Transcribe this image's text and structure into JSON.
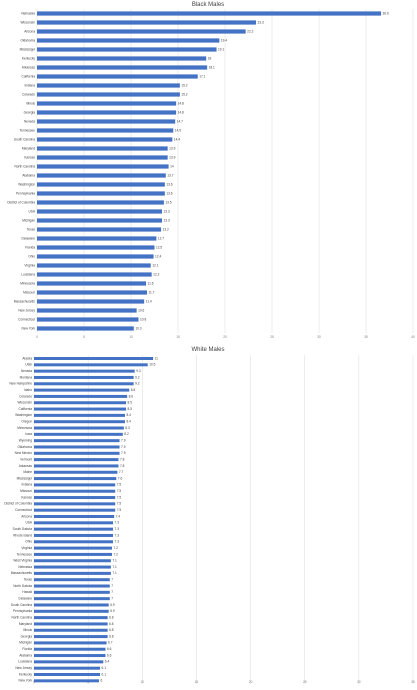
{
  "chart_data": [
    {
      "type": "bar",
      "orientation": "horizontal",
      "title": "Black Males",
      "categories": [
        "Nebraska",
        "Wisconsin",
        "Arizona",
        "Oklahoma",
        "Mississippi",
        "Kentucky",
        "Arkansas",
        "California",
        "Indiana",
        "Colorado",
        "Illinois",
        "Georgia",
        "Nevada",
        "Tennessee",
        "South Carolina",
        "Maryland",
        "Kansas",
        "North Carolina",
        "Alabama",
        "Washington",
        "Pennsylvania",
        "District of Columbia",
        "USA",
        "Michigan",
        "Texas",
        "Delaware",
        "Florida",
        "Ohio",
        "Virginia",
        "Louisiana",
        "Minnesota",
        "Missouri",
        "Massachusetts",
        "New Jersey",
        "Connecticut",
        "New York"
      ],
      "values": [
        36.6,
        23.3,
        22.2,
        19.4,
        19.1,
        18,
        18.1,
        17.1,
        15.2,
        15.2,
        14.8,
        14.8,
        14.7,
        14.5,
        14.4,
        13.9,
        13.9,
        14,
        13.7,
        13.6,
        13.6,
        13.5,
        13.3,
        13.3,
        13.2,
        12.7,
        12.5,
        12.4,
        12.1,
        12.2,
        11.6,
        11.7,
        11.4,
        10.6,
        10.8,
        10.3
      ],
      "xlim": [
        0,
        40
      ],
      "ticks": [
        "0",
        "5",
        "10",
        "15",
        "20",
        "25",
        "30",
        "35",
        "40"
      ],
      "grid": true,
      "legend": "none"
    },
    {
      "type": "bar",
      "orientation": "horizontal",
      "title": "White Males",
      "categories": [
        "Alaska",
        "Utah",
        "Nevada",
        "Montana",
        "New Hampshire",
        "Idaho",
        "Colorado",
        "Wisconsin",
        "California",
        "Washington",
        "Oregon",
        "Minnesota",
        "Iowa",
        "Wyoming",
        "Oklahoma",
        "New Mexico",
        "Vermont",
        "Arkansas",
        "Maine",
        "Mississippi",
        "Indiana",
        "Missouri",
        "Kansas",
        "District of Columbia",
        "Connecticut",
        "Arizona",
        "USA",
        "South Dakota",
        "Rhode Island",
        "Ohio",
        "Virginia",
        "Tennessee",
        "West Virginia",
        "Nebraska",
        "Massachusetts",
        "Texas",
        "North Dakota",
        "Hawaii",
        "Delaware",
        "South Carolina",
        "Pennsylvania",
        "North Carolina",
        "Maryland",
        "Illinois",
        "Georgia",
        "Michigan",
        "Florida",
        "Alabama",
        "Louisiana",
        "New Jersey",
        "Kentucky",
        "New York"
      ],
      "values": [
        11,
        10.5,
        9.3,
        9.2,
        9.2,
        8.8,
        8.6,
        8.5,
        8.5,
        8.4,
        8.4,
        8.3,
        8.2,
        7.9,
        7.9,
        7.9,
        7.8,
        7.8,
        7.7,
        7.6,
        7.5,
        7.5,
        7.5,
        7.5,
        7.5,
        7.4,
        7.3,
        7.3,
        7.3,
        7.3,
        7.2,
        7.2,
        7.1,
        7.1,
        7.1,
        7,
        7,
        7,
        7,
        6.9,
        6.9,
        6.8,
        6.8,
        6.8,
        6.8,
        6.7,
        6.6,
        6.6,
        6.4,
        6.1,
        6.1,
        6
      ],
      "xlim": [
        0,
        35
      ],
      "ticks": [
        "0",
        "5",
        "10",
        "15",
        "20",
        "25",
        "30",
        "35"
      ],
      "grid": true,
      "legend": "none"
    }
  ]
}
